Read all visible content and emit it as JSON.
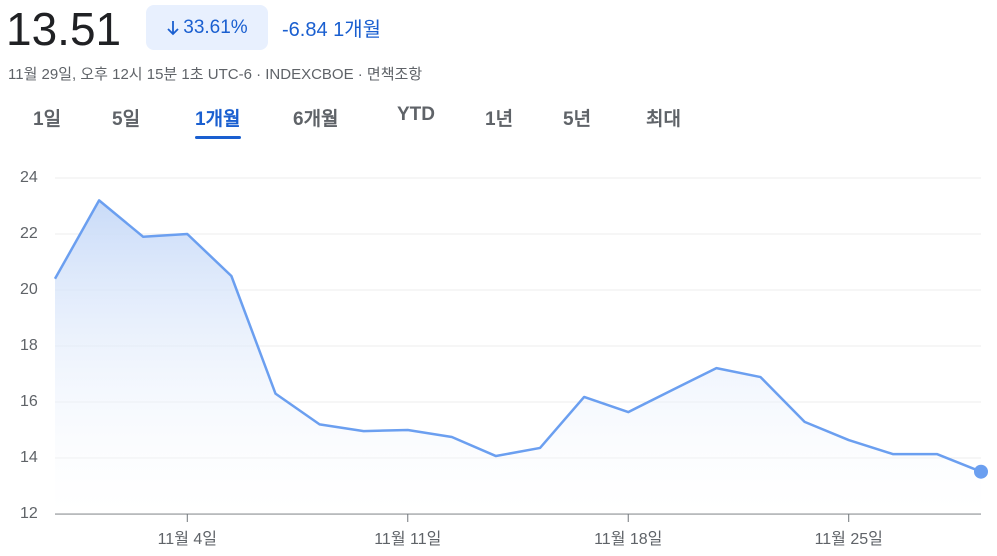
{
  "header": {
    "price": "13.51",
    "change_percent": "33.61%",
    "change": "-6.84",
    "period": "1개월",
    "subtitle": "11월 29일, 오후 12시 15분 1초 UTC-6 · INDEXCBOE · ",
    "disclaimer": "면책조항"
  },
  "tabs": {
    "items": [
      "1일",
      "5일",
      "1개월",
      "6개월",
      "YTD",
      "1년",
      "5년",
      "최대"
    ],
    "active": 2
  },
  "chart_data": {
    "type": "line",
    "categories": [
      null,
      null,
      null,
      "11월 4일",
      null,
      null,
      null,
      null,
      "11월 11일",
      null,
      null,
      null,
      null,
      "11월 18일",
      null,
      null,
      null,
      null,
      "11월 25일",
      null,
      null,
      null
    ],
    "values": [
      20.4,
      23.2,
      21.9,
      22.0,
      20.5,
      16.3,
      15.2,
      14.96,
      15.0,
      14.75,
      14.07,
      14.36,
      16.18,
      15.64,
      16.43,
      17.21,
      16.89,
      15.29,
      14.64,
      14.14,
      14.14,
      13.51
    ],
    "color": "#6b9ff0",
    "ylim": [
      12,
      24
    ],
    "yticks": [
      12,
      14,
      16,
      18,
      20,
      22,
      24
    ],
    "grid": true
  }
}
